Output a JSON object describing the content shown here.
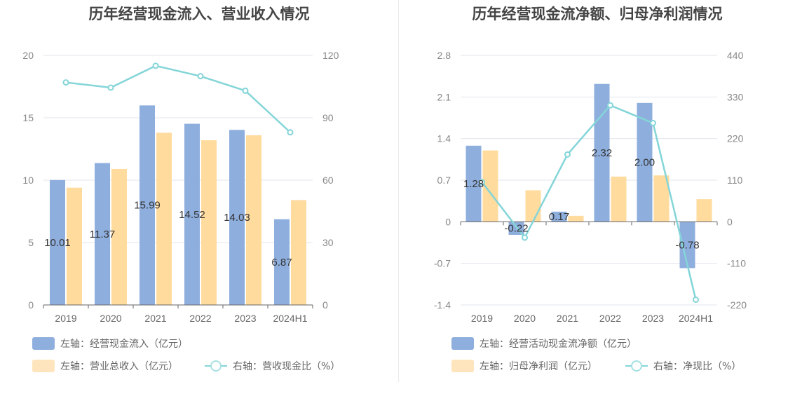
{
  "colors": {
    "bar_primary": "#8eaedd",
    "bar_secondary": "#ffdb9e",
    "line": "#84d5d8",
    "grid": "#e3e6ee",
    "axis": "#666666"
  },
  "chart_data": [
    {
      "type": "bar",
      "title": "历年经营现金流入、营业收入情况",
      "categories": [
        "2019",
        "2020",
        "2021",
        "2022",
        "2023",
        "2024H1"
      ],
      "ylim": [
        0,
        20
      ],
      "yticks": [
        "0",
        "5",
        "10",
        "15",
        "20"
      ],
      "y2lim": [
        0,
        120
      ],
      "y2ticks": [
        "0",
        "30",
        "60",
        "90",
        "120"
      ],
      "series": [
        {
          "name": "左轴：经营现金流入（亿元）",
          "kind": "bar",
          "axis": "left",
          "values": [
            10.01,
            11.37,
            15.99,
            14.52,
            14.03,
            6.87
          ],
          "labels": [
            "10.01",
            "11.37",
            "15.99",
            "14.52",
            "14.03",
            "6.87"
          ]
        },
        {
          "name": "左轴：营业总收入（亿元）",
          "kind": "bar",
          "axis": "left",
          "values": [
            9.4,
            10.9,
            13.8,
            13.2,
            13.6,
            8.4
          ]
        },
        {
          "name": "右轴：营收现金比（%）",
          "kind": "line",
          "axis": "right",
          "values": [
            107,
            104.5,
            115,
            110,
            103,
            83
          ]
        }
      ],
      "grid": true,
      "legend_position": "bottom-left"
    },
    {
      "type": "bar",
      "title": "历年经营现金流净额、归母净利润情况",
      "categories": [
        "2019",
        "2020",
        "2021",
        "2022",
        "2023",
        "2024H1"
      ],
      "ylim": [
        -1.4,
        2.8
      ],
      "yticks": [
        "-1.4",
        "-0.7",
        "0",
        "0.7",
        "1.4",
        "2.1",
        "2.8"
      ],
      "y2lim": [
        -220,
        440
      ],
      "y2ticks": [
        "-220",
        "-110",
        "0",
        "110",
        "220",
        "330",
        "440"
      ],
      "series": [
        {
          "name": "左轴：经营活动现金流净额（亿元）",
          "kind": "bar",
          "axis": "left",
          "values": [
            1.28,
            -0.22,
            0.17,
            2.32,
            2.0,
            -0.78
          ],
          "labels": [
            "1.28",
            "-0.22",
            "0.17",
            "2.32",
            "2.00",
            "-0.78"
          ]
        },
        {
          "name": "左轴：归母净利润（亿元）",
          "kind": "bar",
          "axis": "left",
          "values": [
            1.2,
            0.53,
            0.1,
            0.76,
            0.78,
            0.38
          ]
        },
        {
          "name": "右轴：净现比（%）",
          "kind": "line",
          "axis": "right",
          "values": [
            105,
            -42,
            178,
            308,
            261,
            -206
          ]
        }
      ],
      "grid": true,
      "legend_position": "bottom-left"
    }
  ]
}
